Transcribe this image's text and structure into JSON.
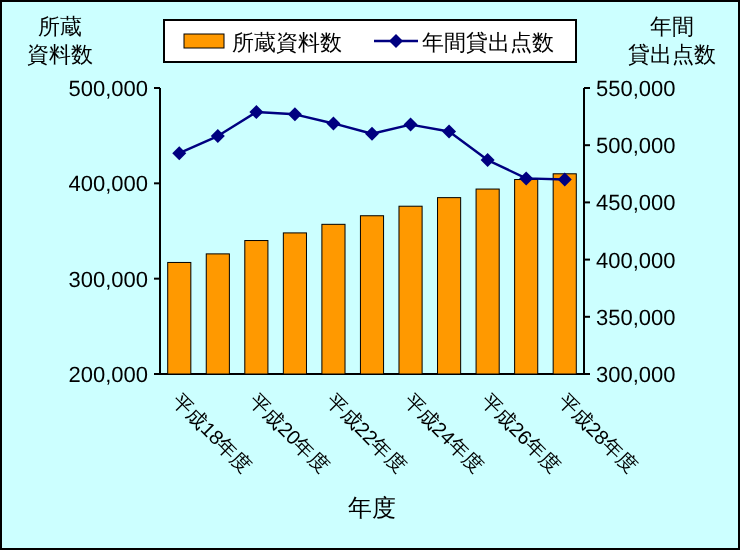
{
  "chart_data": {
    "type": "bar",
    "categories": [
      "平成18年度",
      null,
      "平成20年度",
      null,
      "平成22年度",
      null,
      "平成24年度",
      null,
      "平成26年度",
      null,
      "平成28年度"
    ],
    "series": [
      {
        "name": "所蔵資料数",
        "color": "#ff9900",
        "values": [
          317000,
          326000,
          340000,
          348000,
          357000,
          366000,
          376000,
          385000,
          394000,
          404000,
          410000
        ]
      },
      {
        "name": "年間貸出点数",
        "type": "line",
        "axis": "y2",
        "color": "#000080",
        "marker": "diamond",
        "values": [
          493000,
          508000,
          529000,
          527000,
          519000,
          510000,
          518000,
          512000,
          487000,
          471000,
          470000
        ]
      }
    ],
    "xlabel": "年度",
    "ylabel": "所蔵資料数",
    "y2label": "年間貸出点数",
    "ylim": [
      200000,
      500000
    ],
    "yticks": [
      {
        "value": 200000,
        "label": "200,000"
      },
      {
        "value": 300000,
        "label": "300,000"
      },
      {
        "value": 400000,
        "label": "400,000"
      },
      {
        "value": 500000,
        "label": "500,000"
      }
    ],
    "y2lim": [
      300000,
      550000
    ],
    "y2ticks": [
      {
        "value": 300000,
        "label": "300,000"
      },
      {
        "value": 350000,
        "label": "350,000"
      },
      {
        "value": 400000,
        "label": "400,000"
      },
      {
        "value": 450000,
        "label": "450,000"
      },
      {
        "value": 500000,
        "label": "500,000"
      },
      {
        "value": 550000,
        "label": "550,000"
      }
    ],
    "legend": "top"
  }
}
